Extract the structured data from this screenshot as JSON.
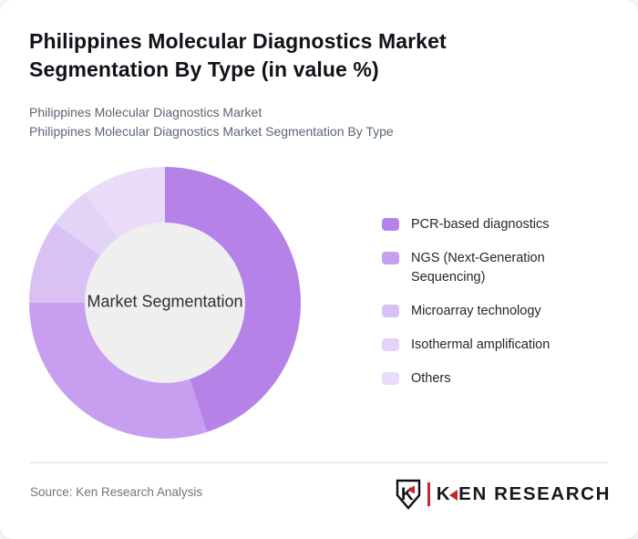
{
  "colors": {
    "page_bg": "#f2f3f6",
    "card_bg": "#ffffff",
    "divider": "#d8d8d8",
    "logo_accent": "#c5262c",
    "donut_hole": "#efefef"
  },
  "header": {
    "title": "Philippines Molecular Diagnostics Market Segmentation By Type (in value %)",
    "subtitle_line1": "Philippines Molecular Diagnostics Market",
    "subtitle_line2": "Philippines Molecular Diagnostics Market Segmentation By Type"
  },
  "chart_data": {
    "type": "pie",
    "variant": "donut",
    "title": "Philippines Molecular Diagnostics Market Segmentation By Type (in value %)",
    "center_label": "Market Segmentation",
    "categories": [
      "PCR-based diagnostics",
      "NGS (Next-Generation Sequencing)",
      "Microarray technology",
      "Isothermal amplification",
      "Others"
    ],
    "values": [
      45,
      30,
      10,
      5,
      10
    ],
    "unit": "percent of market value (estimated from arc angles; no numeric labels shown)",
    "colors": [
      "#b583e8",
      "#c89ef0",
      "#d9c1f3",
      "#e3d3f7",
      "#eadcf9"
    ],
    "inner_circle_color": "#efefef",
    "start_angle_deg_from_top_clockwise": 0,
    "legend_position": "right",
    "outer_radius_px": 149,
    "inner_radius_px": 88
  },
  "footer": {
    "source": "Source: Ken Research Analysis",
    "logo": {
      "shield_letter": "K",
      "brand_prefix": "K",
      "brand_suffix": "EN RESEARCH",
      "accent_color": "#c5262c"
    }
  }
}
